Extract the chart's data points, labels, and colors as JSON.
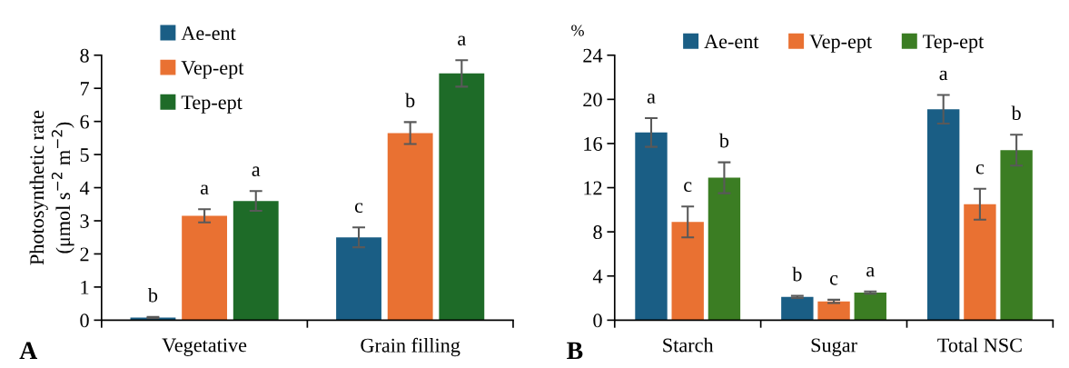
{
  "chart_data": [
    {
      "type": "bar",
      "ylabel": "Photosynthetic rate\n(μmol s$^{−2}$ m$^{−2}$)",
      "categories": [
        "Vegetative",
        "Grain filling"
      ],
      "ylim": [
        0,
        8
      ],
      "yticks": [
        0,
        1,
        2,
        3,
        4,
        5,
        6,
        7,
        8
      ],
      "legend": "top left",
      "grid": false,
      "annotations": [
        "A"
      ],
      "series": [
        {
          "name": "Ae-ent",
          "color": "#1a5e85",
          "values": [
            0.08,
            2.5
          ],
          "errors": [
            0.02,
            0.3
          ],
          "value_labels": [
            "b",
            "c"
          ]
        },
        {
          "name": "Vep-ept",
          "color": "#e97132",
          "values": [
            3.15,
            5.65
          ],
          "errors": [
            0.2,
            0.33
          ],
          "value_labels": [
            "a",
            "b"
          ]
        },
        {
          "name": "Tep-ept",
          "color": "#1e6b28",
          "values": [
            3.6,
            7.45
          ],
          "errors": [
            0.3,
            0.4
          ],
          "value_labels": [
            "a",
            "a"
          ]
        }
      ]
    },
    {
      "type": "bar",
      "ylabel": "%",
      "categories": [
        "Starch",
        "Sugar",
        "Total NSC"
      ],
      "ylim": [
        0,
        24
      ],
      "yticks": [
        0,
        4,
        8,
        12,
        16,
        20,
        24
      ],
      "legend": "top",
      "grid": false,
      "annotations": [
        "B"
      ],
      "series": [
        {
          "name": "Ae-ent",
          "color": "#1a5e85",
          "values": [
            17.0,
            2.1,
            19.1
          ],
          "errors": [
            1.3,
            0.1,
            1.3
          ],
          "value_labels": [
            "a",
            "b",
            "a"
          ]
        },
        {
          "name": "Vep-ept",
          "color": "#e97132",
          "values": [
            8.9,
            1.7,
            10.5
          ],
          "errors": [
            1.4,
            0.15,
            1.4
          ],
          "value_labels": [
            "c",
            "c",
            "c"
          ]
        },
        {
          "name": "Tep-ept",
          "color": "#3b7d23",
          "values": [
            12.9,
            2.5,
            15.4
          ],
          "errors": [
            1.4,
            0.1,
            1.4
          ],
          "value_labels": [
            "b",
            "a",
            "b"
          ]
        }
      ]
    }
  ]
}
